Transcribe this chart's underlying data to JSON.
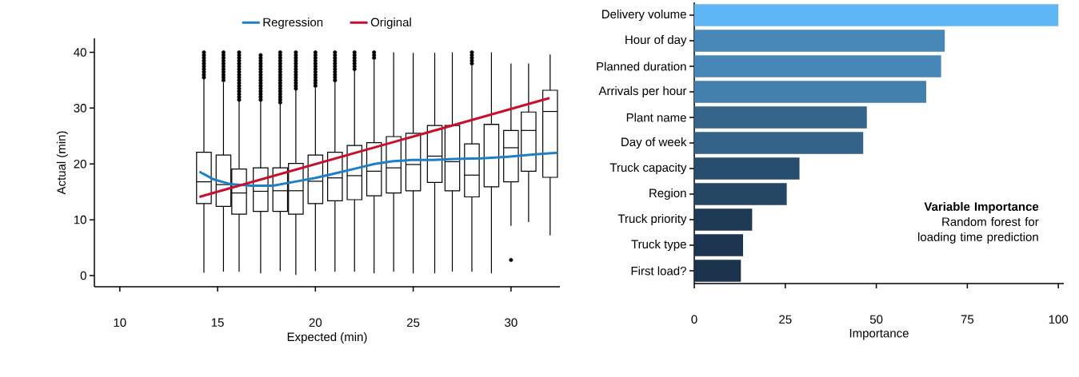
{
  "chart_data": [
    {
      "type": "box",
      "xlabel": "Expected (min)",
      "ylabel": "Actual (min)",
      "xlim": [
        8.7,
        32.5
      ],
      "ylim": [
        -2,
        42.5
      ],
      "xticks": [
        10,
        15,
        20,
        25,
        30
      ],
      "yticks": [
        0,
        10,
        20,
        30,
        40
      ],
      "legend": "top",
      "x": [
        14.3,
        15.3,
        16.1,
        17.2,
        18.2,
        19.0,
        20.0,
        21.0,
        22.0,
        23.0,
        24.0,
        25.0,
        26.1,
        27.0,
        28.0,
        29.0,
        30.0,
        30.9,
        32.0
      ],
      "boxes": [
        {
          "low": 0.5,
          "q1": 12.9,
          "median": 16.8,
          "q3": 22.1,
          "high": 35.2,
          "outliers": [
            35.5,
            36,
            36.5,
            37,
            37.5,
            38,
            38.5,
            39,
            39.5,
            40
          ]
        },
        {
          "low": 0.7,
          "q1": 12.4,
          "median": 16.3,
          "q3": 21.6,
          "high": 34.6,
          "outliers": [
            35,
            35.5,
            36,
            36.5,
            37,
            37.5,
            38,
            38.5,
            39,
            39.5,
            40
          ]
        },
        {
          "low": 0.7,
          "q1": 11.0,
          "median": 14.8,
          "q3": 19.1,
          "high": 31.2,
          "outliers": [
            31.5,
            32,
            32.5,
            33,
            33.5,
            34,
            34.5,
            35,
            35.5,
            36,
            36.5,
            37,
            37.5,
            38,
            38.5,
            39,
            39.5,
            40
          ]
        },
        {
          "low": 0.4,
          "q1": 11.5,
          "median": 15.1,
          "q3": 19.3,
          "high": 31.2,
          "outliers": [
            31.5,
            32,
            32.5,
            33,
            33.5,
            34,
            34.5,
            35,
            35.5,
            36,
            36.5,
            37,
            37.5,
            38,
            38.5,
            39,
            39.5
          ]
        },
        {
          "low": 0.8,
          "q1": 11.5,
          "median": 15.2,
          "q3": 19.3,
          "high": 30.8,
          "outliers": [
            31,
            31.5,
            32,
            32.5,
            33,
            33.5,
            34,
            34.5,
            35,
            35.5,
            36,
            36.5,
            37,
            37.5,
            38,
            38.5,
            39,
            39.5,
            40
          ]
        },
        {
          "low": 0.1,
          "q1": 11.0,
          "median": 15.2,
          "q3": 20.1,
          "high": 33.4,
          "outliers": [
            33.5,
            34,
            34.5,
            35,
            35.5,
            36,
            36.5,
            37,
            37.5,
            38,
            38.5,
            39,
            39.5,
            40
          ]
        },
        {
          "low": 0.8,
          "q1": 12.9,
          "median": 16.9,
          "q3": 21.6,
          "high": 33.6,
          "outliers": [
            34,
            34.5,
            35,
            35.5,
            36,
            36.5,
            37,
            37.5,
            38,
            38.5,
            39,
            39.5,
            40
          ]
        },
        {
          "low": 0.7,
          "q1": 13.4,
          "median": 17.5,
          "q3": 22.1,
          "high": 34.9,
          "outliers": [
            35,
            35.5,
            36,
            36.5,
            37,
            37.5,
            38,
            38.5,
            39,
            39.5,
            40
          ]
        },
        {
          "low": 0.7,
          "q1": 13.6,
          "median": 17.9,
          "q3": 23.3,
          "high": 36.8,
          "outliers": [
            37,
            37.5,
            38,
            38.5,
            39,
            39.5,
            40
          ]
        },
        {
          "low": 0.4,
          "q1": 14.3,
          "median": 18.7,
          "q3": 23.8,
          "high": 38.6,
          "outliers": [
            39,
            39.5,
            40
          ]
        },
        {
          "low": 0.7,
          "q1": 14.8,
          "median": 19.3,
          "q3": 24.9,
          "high": 40
        },
        {
          "low": 0.4,
          "q1": 15.2,
          "median": 19.9,
          "q3": 25.5,
          "high": 39.9
        },
        {
          "low": 0.4,
          "q1": 16.7,
          "median": 21.4,
          "q3": 26.9,
          "high": 39.9
        },
        {
          "low": 0.7,
          "q1": 15.2,
          "median": 20.4,
          "q3": 26.9,
          "high": 40
        },
        {
          "low": 0.7,
          "q1": 14.1,
          "median": 18.0,
          "q3": 23.6,
          "high": 37.7,
          "outliers": [
            38,
            38.5,
            39,
            39.5,
            40
          ]
        },
        {
          "low": 0.4,
          "q1": 15.9,
          "median": 27.1,
          "q3": 27.1,
          "high": 40
        },
        {
          "low": 8.9,
          "q1": 16.8,
          "median": 22.9,
          "q3": 26.0,
          "high": 38.0,
          "outliers": [
            2.8
          ]
        },
        {
          "low": 9.6,
          "q1": 18.7,
          "median": 26.0,
          "q3": 29.3,
          "high": 38.0
        },
        {
          "low": 7.2,
          "q1": 17.6,
          "median": 29.4,
          "q3": 33.2,
          "high": 39.6
        }
      ],
      "series": [
        {
          "name": "Regression",
          "type": "line",
          "color": "#1f7fc6",
          "x": [
            14.07,
            14.82,
            15.64,
            16.73,
            17.83,
            18.92,
            20.01,
            21.11,
            22.2,
            23.02,
            23.98,
            24.93,
            26.02,
            27.12,
            28.48,
            29.85,
            31.22,
            32.38
          ],
          "values": [
            18.6,
            17.2,
            16.4,
            16.1,
            16.1,
            16.8,
            17.5,
            18.4,
            19.3,
            20.0,
            20.5,
            20.7,
            20.7,
            20.9,
            21.0,
            21.3,
            21.7,
            22.0
          ]
        },
        {
          "name": "Original",
          "type": "line",
          "color": "#c8102e",
          "x": [
            14.07,
            31.97
          ],
          "values": [
            14.1,
            31.8
          ]
        }
      ]
    },
    {
      "type": "bar",
      "orientation": "horizontal",
      "title": "Variable Importance",
      "subtitle": "Random forest for loading time prediction",
      "xlabel": "Importance",
      "xlim": [
        0,
        101.5
      ],
      "xticks": [
        0,
        25,
        50,
        75,
        100
      ],
      "categories": [
        "Delivery volume",
        "Hour of day",
        "Planned duration",
        "Arrivals per hour",
        "Plant name",
        "Day of week",
        "Truck capacity",
        "Region",
        "Truck priority",
        "Truck type",
        "First load?"
      ],
      "values": [
        100,
        68.8,
        67.8,
        63.7,
        47.4,
        46.4,
        28.9,
        25.4,
        15.9,
        13.4,
        12.8
      ],
      "colors": [
        "#5eb6f5",
        "#4788b8",
        "#4787b8",
        "#4380ae",
        "#35658b",
        "#336389",
        "#274d6e",
        "#244662",
        "#1e3a55",
        "#1c3450",
        "#1c334e"
      ]
    }
  ]
}
